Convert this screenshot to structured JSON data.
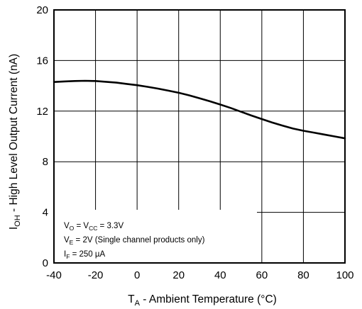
{
  "chart_data": {
    "type": "line",
    "title": "",
    "xlabel": {
      "main": "T",
      "sub": "A",
      "rest": " - Ambient Temperature (°C)"
    },
    "ylabel": {
      "main": "I",
      "sub": "OH",
      "rest": " - High Level Output Current (nA)"
    },
    "xlim": [
      -40,
      100
    ],
    "ylim": [
      0,
      20
    ],
    "xticks": [
      "-40",
      "-20",
      "0",
      "20",
      "40",
      "60",
      "80",
      "100"
    ],
    "yticks": [
      "0",
      "4",
      "8",
      "12",
      "16",
      "20"
    ],
    "grid": true,
    "series": [
      {
        "color": "#000000",
        "x": [
          -40,
          -35,
          -30,
          -25,
          -20,
          -15,
          -10,
          -5,
          0,
          5,
          10,
          15,
          20,
          25,
          30,
          35,
          40,
          45,
          50,
          55,
          60,
          65,
          70,
          75,
          80,
          85,
          90,
          95,
          100
        ],
        "y": [
          14.3,
          14.35,
          14.38,
          14.4,
          14.38,
          14.32,
          14.25,
          14.15,
          14.05,
          13.92,
          13.78,
          13.62,
          13.45,
          13.25,
          13.02,
          12.78,
          12.52,
          12.25,
          11.95,
          11.65,
          11.37,
          11.1,
          10.85,
          10.62,
          10.45,
          10.3,
          10.15,
          10.0,
          9.85
        ]
      }
    ],
    "annotations": [
      {
        "parts": [
          [
            "V",
            ""
          ],
          [
            "O",
            "sub"
          ],
          [
            " = V",
            ""
          ],
          [
            "CC",
            "sub"
          ],
          [
            " = 3.3V",
            ""
          ]
        ]
      },
      {
        "parts": [
          [
            "V",
            ""
          ],
          [
            "E",
            "sub"
          ],
          [
            " = 2V (Single channel products only)",
            ""
          ]
        ]
      },
      {
        "parts": [
          [
            "I",
            ""
          ],
          [
            "F",
            "sub"
          ],
          [
            " = 250 µA",
            ""
          ]
        ]
      }
    ]
  }
}
